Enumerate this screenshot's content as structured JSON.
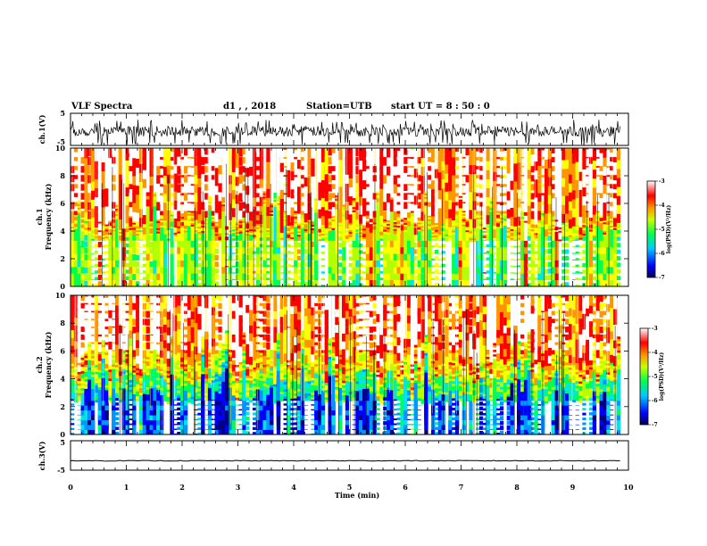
{
  "header": {
    "title": "VLF Spectra",
    "date": "d1  ,  ,  2018",
    "station": "Station=UTB",
    "start_ut": "start UT =  8 : 50 : 0"
  },
  "chart_data": [
    {
      "type": "line",
      "name": "ch.1 waveform",
      "ylabel": "ch.1(V)",
      "ylim": [
        -5,
        5
      ],
      "yticks": [
        "5",
        "-5"
      ],
      "xlim": [
        0,
        10
      ],
      "trace": "noisy waveform spanning roughly -5 to 3 V over 0–9.85 min"
    },
    {
      "type": "heatmap",
      "name": "ch.1 spectrogram",
      "ylabel_lines": [
        "ch.1",
        "Frequency (kHz)"
      ],
      "ylim": [
        0,
        10
      ],
      "yticks": [
        "0",
        "2",
        "4",
        "6",
        "8",
        "10"
      ],
      "xlim": [
        0,
        10
      ],
      "data_extent_min": 9.85,
      "bands": [
        {
          "f_from": 0,
          "f_to": 3.8,
          "logpsd": -4.9
        },
        {
          "f_from": 3.8,
          "f_to": 4.8,
          "logpsd": -4.3
        },
        {
          "f_from": 4.8,
          "f_to": 10,
          "logpsd": -3.7
        }
      ],
      "colorbar": {
        "label": "log(PSD)(V²/Hz)",
        "range": [
          -7,
          -3
        ],
        "ticks": [
          "-3",
          "-4",
          "-5",
          "-6",
          "-7"
        ]
      }
    },
    {
      "type": "heatmap",
      "name": "ch.2 spectrogram",
      "ylabel_lines": [
        "ch.2",
        "Frequency (kHz)"
      ],
      "ylim": [
        0,
        10
      ],
      "yticks": [
        "0",
        "2",
        "4",
        "6",
        "8",
        "10"
      ],
      "xlim": [
        0,
        10
      ],
      "data_extent_min": 9.85,
      "bands": [
        {
          "f_from": 0,
          "f_to": 2.8,
          "logpsd": -6.2
        },
        {
          "f_from": 2.8,
          "f_to": 4.2,
          "logpsd": -5.2
        },
        {
          "f_from": 4.2,
          "f_to": 5.5,
          "logpsd": -4.3
        },
        {
          "f_from": 5.5,
          "f_to": 10,
          "logpsd": -3.8
        }
      ],
      "colorbar": {
        "label": "log(PSD)(V²/Hz)",
        "range": [
          -7,
          -3
        ],
        "ticks": [
          "-3",
          "-4",
          "-5",
          "-6",
          "-7"
        ]
      }
    },
    {
      "type": "line",
      "name": "ch.3 waveform",
      "ylabel": "ch.3(V)",
      "ylim": [
        -5,
        5
      ],
      "yticks": [
        "5",
        "-5"
      ],
      "xlim": [
        0,
        10
      ],
      "baseline_v": -1.8
    }
  ],
  "xaxis": {
    "label": "Time (min)",
    "ticks": [
      "0",
      "1",
      "2",
      "3",
      "4",
      "5",
      "6",
      "7",
      "8",
      "9",
      "10"
    ]
  },
  "colormap": [
    "#000080",
    "#0000ff",
    "#0096ff",
    "#00e6e6",
    "#00ff50",
    "#b4ff00",
    "#ffff00",
    "#ff9600",
    "#ff0000",
    "#ffffff"
  ]
}
